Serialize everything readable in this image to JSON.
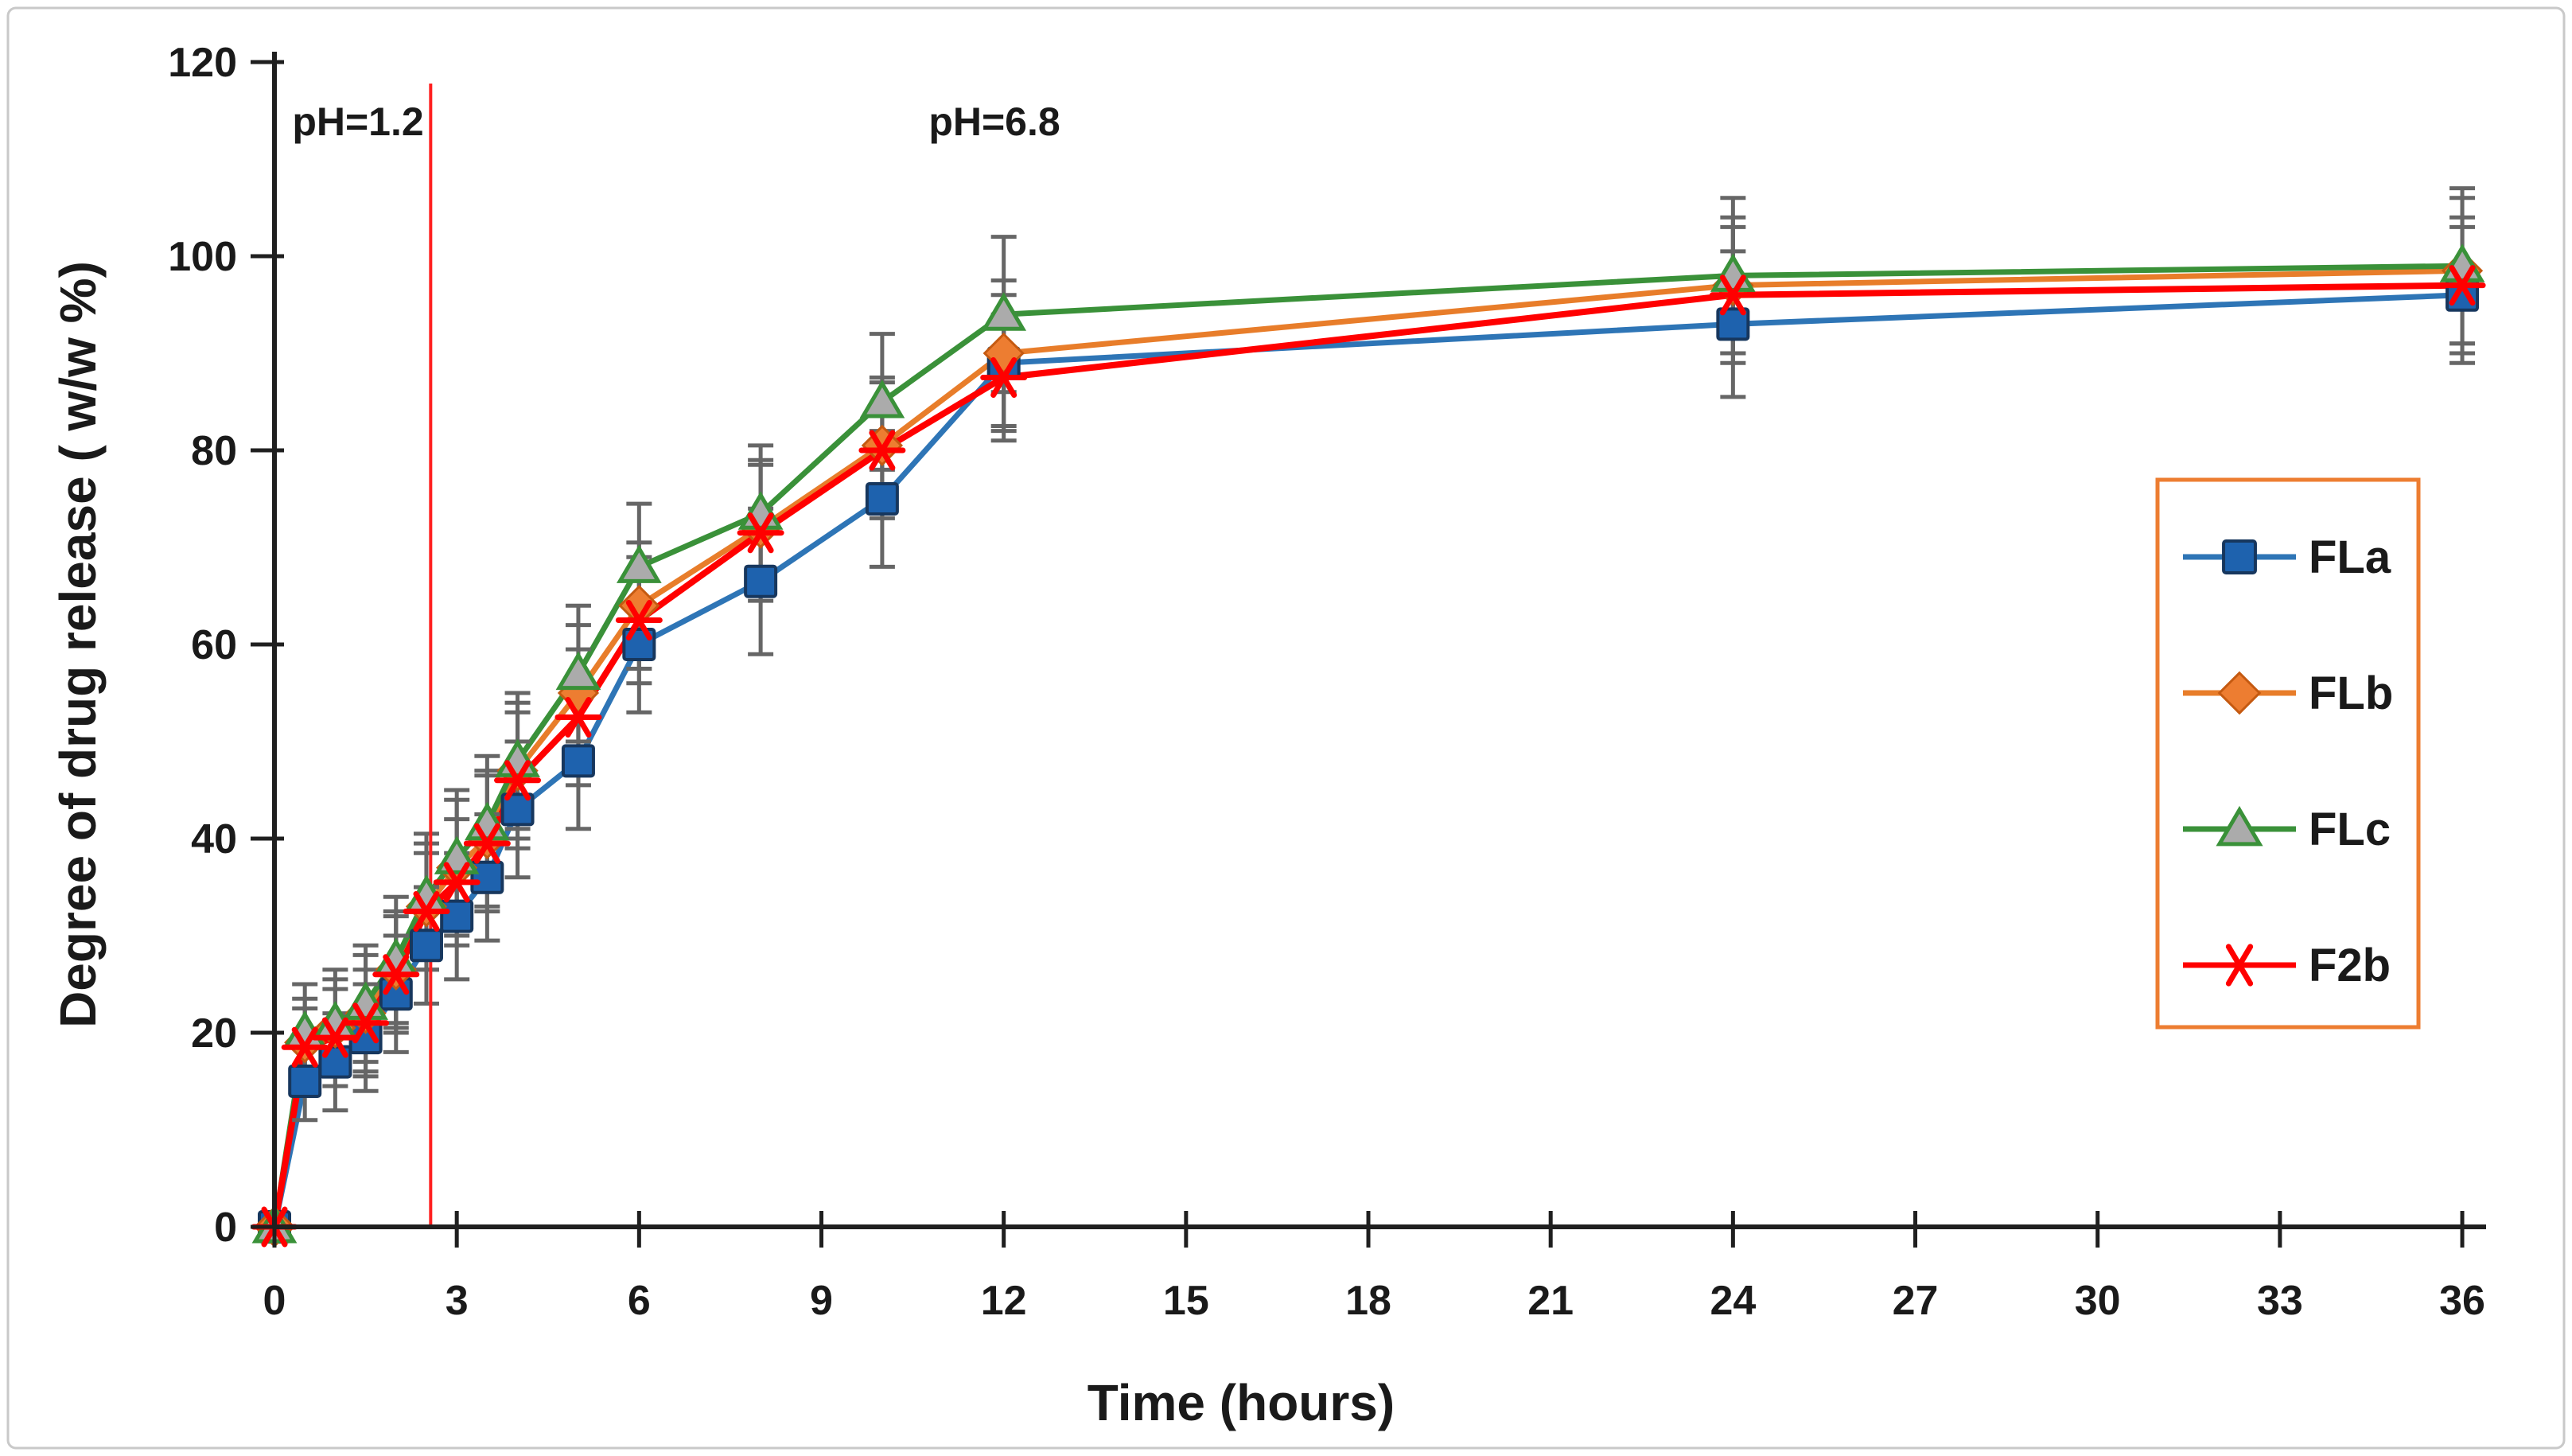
{
  "figure": {
    "background": "#ffffff",
    "border_color": "#c9c9c9",
    "axis_color": "#1f1f1f",
    "error_bar_color": "#666666"
  },
  "chart_data": {
    "type": "line",
    "title": "",
    "xlabel": "Time (hours)",
    "ylabel": "Degree of drug release ( w/w %)",
    "xlim": [
      0,
      36
    ],
    "ylim": [
      0,
      120
    ],
    "x_ticks": [
      0,
      3,
      6,
      9,
      12,
      15,
      18,
      21,
      24,
      27,
      30,
      33,
      36
    ],
    "y_ticks": [
      0,
      20,
      40,
      60,
      80,
      100,
      120
    ],
    "grid": false,
    "legend_position": "right",
    "x": [
      0,
      0.5,
      1,
      1.5,
      2,
      2.5,
      3,
      3.5,
      4,
      5,
      6,
      8,
      10,
      12,
      24,
      36
    ],
    "series": [
      {
        "name": "FLa",
        "marker": "square",
        "line_color": "#2E75B6",
        "marker_fill": "#1E62AE",
        "marker_stroke": "#17375E",
        "values": [
          0,
          15,
          17,
          19.5,
          24,
          29,
          32,
          36,
          43,
          48,
          60,
          66.5,
          75,
          89,
          93,
          96
        ],
        "errors": [
          0,
          4,
          5,
          5.5,
          6,
          6,
          6.5,
          6.5,
          7,
          7,
          7,
          7.5,
          7,
          7,
          7.5,
          7
        ]
      },
      {
        "name": "FLb",
        "marker": "diamond",
        "line_color": "#E87D2A",
        "marker_fill": "#ED7D31",
        "marker_stroke": "#C55A11",
        "values": [
          0,
          19,
          20.5,
          22,
          26.5,
          33,
          37,
          40,
          47,
          55,
          64,
          72,
          80.5,
          90,
          97,
          98.5
        ],
        "errors": [
          0,
          4.5,
          5,
          6,
          6,
          6.5,
          7,
          7,
          7,
          7,
          6.5,
          7,
          7,
          7.5,
          7,
          7.5
        ]
      },
      {
        "name": "FLc",
        "marker": "triangle",
        "line_color": "#3A9139",
        "marker_fill": "#ABABAB",
        "marker_stroke": "#3A9139",
        "values": [
          0,
          20,
          21,
          23,
          27.5,
          34,
          38,
          41.5,
          48,
          57,
          68,
          73.5,
          85,
          94,
          98,
          99
        ],
        "errors": [
          0,
          5,
          5.5,
          6,
          6.5,
          6.5,
          7,
          7,
          7,
          7,
          6.5,
          7,
          7,
          8,
          8,
          8
        ]
      },
      {
        "name": "F2b",
        "marker": "asterisk",
        "line_color": "#FF0000",
        "marker_fill": "#FF0000",
        "marker_stroke": "#FF0000",
        "values": [
          0,
          18.5,
          19.5,
          21,
          26,
          32.5,
          35.5,
          39.5,
          46,
          52.5,
          62.5,
          71.5,
          80,
          87.5,
          96,
          97
        ],
        "errors": [
          0,
          4,
          5,
          5.5,
          6,
          6,
          6.5,
          7,
          7,
          7,
          6.5,
          7,
          7,
          6.5,
          7,
          7
        ]
      }
    ],
    "vline": {
      "x": 2.57,
      "color": "#FF1F1F"
    },
    "annotations": [
      {
        "text": "pH=1.2",
        "x": 1.37,
        "y": 114,
        "color": "#FF0000"
      },
      {
        "text": "pH=6.8",
        "x": 11.85,
        "y": 114,
        "color": "#FF0000"
      }
    ]
  },
  "legend": {
    "border_color": "#ED7D31",
    "entries": [
      "FLa",
      "FLb",
      "FLc",
      "F2b"
    ]
  }
}
